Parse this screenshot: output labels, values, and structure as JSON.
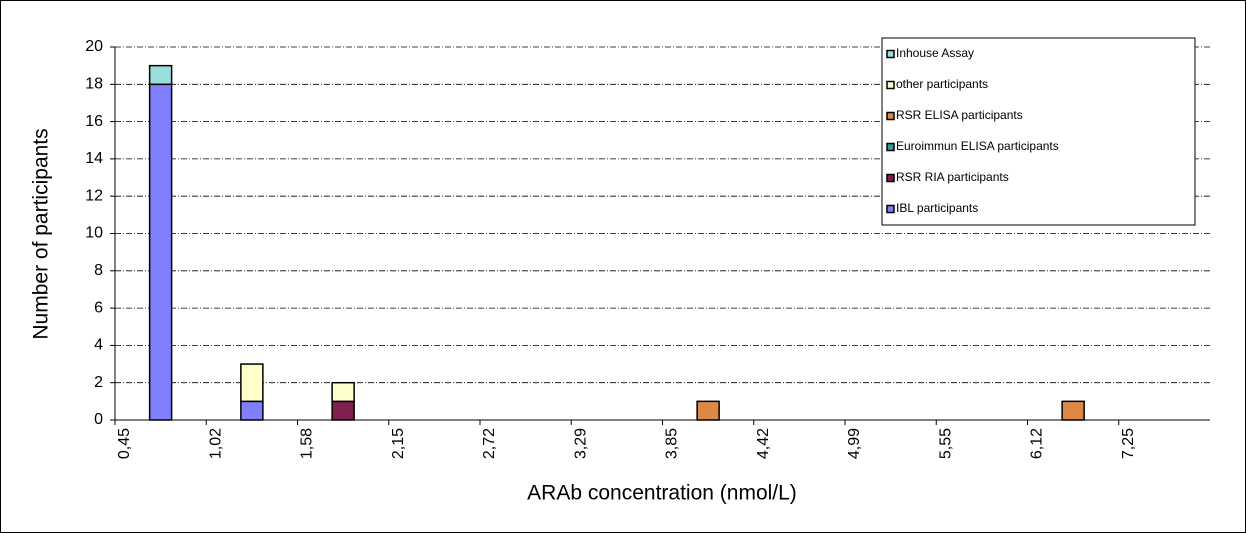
{
  "chart_data": {
    "type": "stacked-bar",
    "x_label": "ARAb concentration (nmol/L)",
    "y_label": "Number of participants",
    "categories": [
      "0,45",
      "1,02",
      "1,58",
      "2,15",
      "2,72",
      "3,29",
      "3,85",
      "4,42",
      "4,99",
      "5,55",
      "6,12",
      "7,25"
    ],
    "series": [
      {
        "name": "Inhouse Assay",
        "color": "#99dddd",
        "values": [
          1,
          0,
          0,
          0,
          0,
          0,
          0,
          0,
          0,
          0,
          0,
          0
        ]
      },
      {
        "name": "other participants",
        "color": "#ffffcc",
        "values": [
          0,
          2,
          1,
          0,
          0,
          0,
          0,
          0,
          0,
          0,
          0,
          0
        ]
      },
      {
        "name": "RSR ELISA participants",
        "color": "#dd8844",
        "values": [
          0,
          0,
          0,
          0,
          0,
          0,
          1,
          0,
          0,
          0,
          1,
          0
        ]
      },
      {
        "name": "Euroimmun ELISA participants",
        "color": "#339999",
        "values": [
          0,
          0,
          0,
          0,
          0,
          0,
          0,
          0,
          0,
          0,
          0,
          0
        ]
      },
      {
        "name": "RSR RIA participants",
        "color": "#802050",
        "values": [
          0,
          0,
          1,
          0,
          0,
          0,
          0,
          0,
          0,
          0,
          0,
          0
        ]
      },
      {
        "name": "IBL participants",
        "color": "#8080ff",
        "values": [
          18,
          1,
          0,
          0,
          0,
          0,
          0,
          0,
          0,
          0,
          0,
          0
        ]
      }
    ],
    "ylim": [
      0,
      20
    ],
    "yticks": [
      0,
      2,
      4,
      6,
      8,
      10,
      12,
      14,
      16,
      18,
      20
    ],
    "grid": true,
    "legend": "upper right"
  }
}
